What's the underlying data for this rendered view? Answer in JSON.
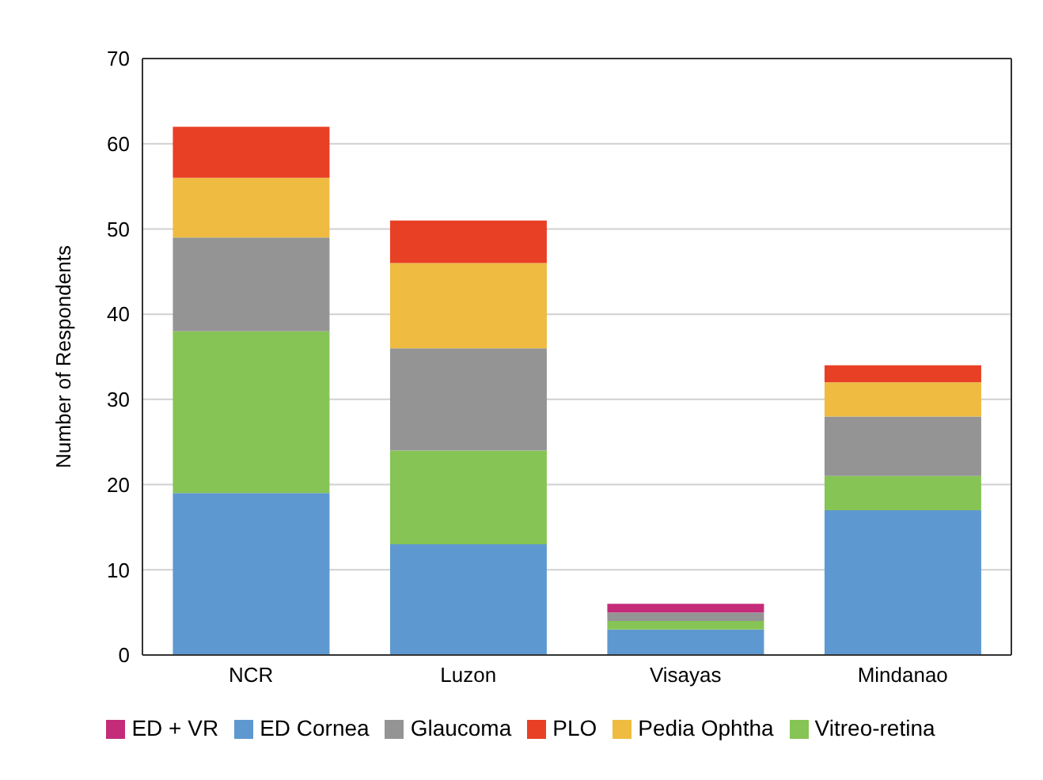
{
  "chart_data": {
    "type": "bar",
    "stacked": true,
    "ylabel": "Number of Respondents",
    "categories": [
      "NCR",
      "Luzon",
      "Visayas",
      "Mindanao"
    ],
    "series": [
      {
        "name": "ED Cornea",
        "color": "#5e98d0",
        "values": [
          19,
          13,
          3,
          17
        ]
      },
      {
        "name": "Vitreo-retina",
        "color": "#86c455",
        "values": [
          19,
          11,
          1,
          4
        ]
      },
      {
        "name": "Glaucoma",
        "color": "#949494",
        "values": [
          11,
          12,
          1,
          7
        ]
      },
      {
        "name": "Pedia Ophtha",
        "color": "#efbb40",
        "values": [
          7,
          10,
          0,
          4
        ]
      },
      {
        "name": "PLO",
        "color": "#e84024",
        "values": [
          6,
          5,
          0,
          2
        ]
      },
      {
        "name": "ED + VR",
        "color": "#c42c7a",
        "values": [
          0,
          0,
          1,
          0
        ]
      }
    ],
    "ylim": [
      0,
      70
    ],
    "yticks": [
      0,
      10,
      20,
      30,
      40,
      50,
      60,
      70
    ],
    "grid": "y",
    "legend": "bottom"
  }
}
